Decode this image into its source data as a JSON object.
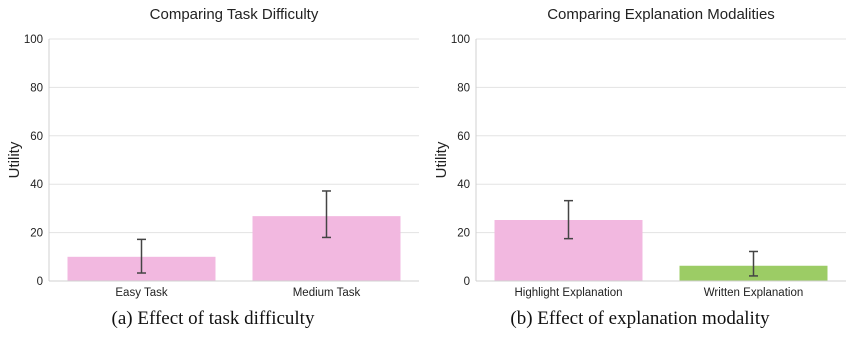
{
  "chart_data": [
    {
      "type": "bar",
      "title": "Comparing Task Difficulty",
      "xlabel": "",
      "ylabel": "Utility",
      "ylim": [
        0,
        100
      ],
      "yticks": [
        0,
        20,
        40,
        60,
        80,
        100
      ],
      "grid": true,
      "categories": [
        "Easy Task",
        "Medium Task"
      ],
      "values": [
        10,
        26.8
      ],
      "error_low": [
        3.3,
        18
      ],
      "error_high": [
        17.2,
        37.2
      ],
      "colors": [
        "#f2b8e0",
        "#f2b8e0"
      ],
      "caption": "(a)  Effect of task difficulty"
    },
    {
      "type": "bar",
      "title": "Comparing Explanation Modalities",
      "xlabel": "",
      "ylabel": "Utility",
      "ylim": [
        0,
        100
      ],
      "yticks": [
        0,
        20,
        40,
        60,
        80,
        100
      ],
      "grid": true,
      "categories": [
        "Highlight Explanation",
        "Written Explanation"
      ],
      "values": [
        25.2,
        6.3
      ],
      "error_low": [
        17.5,
        2.1
      ],
      "error_high": [
        33.2,
        12.2
      ],
      "colors": [
        "#f2b8e0",
        "#9ccc65"
      ],
      "caption": "(b)  Effect of explanation modality"
    }
  ]
}
